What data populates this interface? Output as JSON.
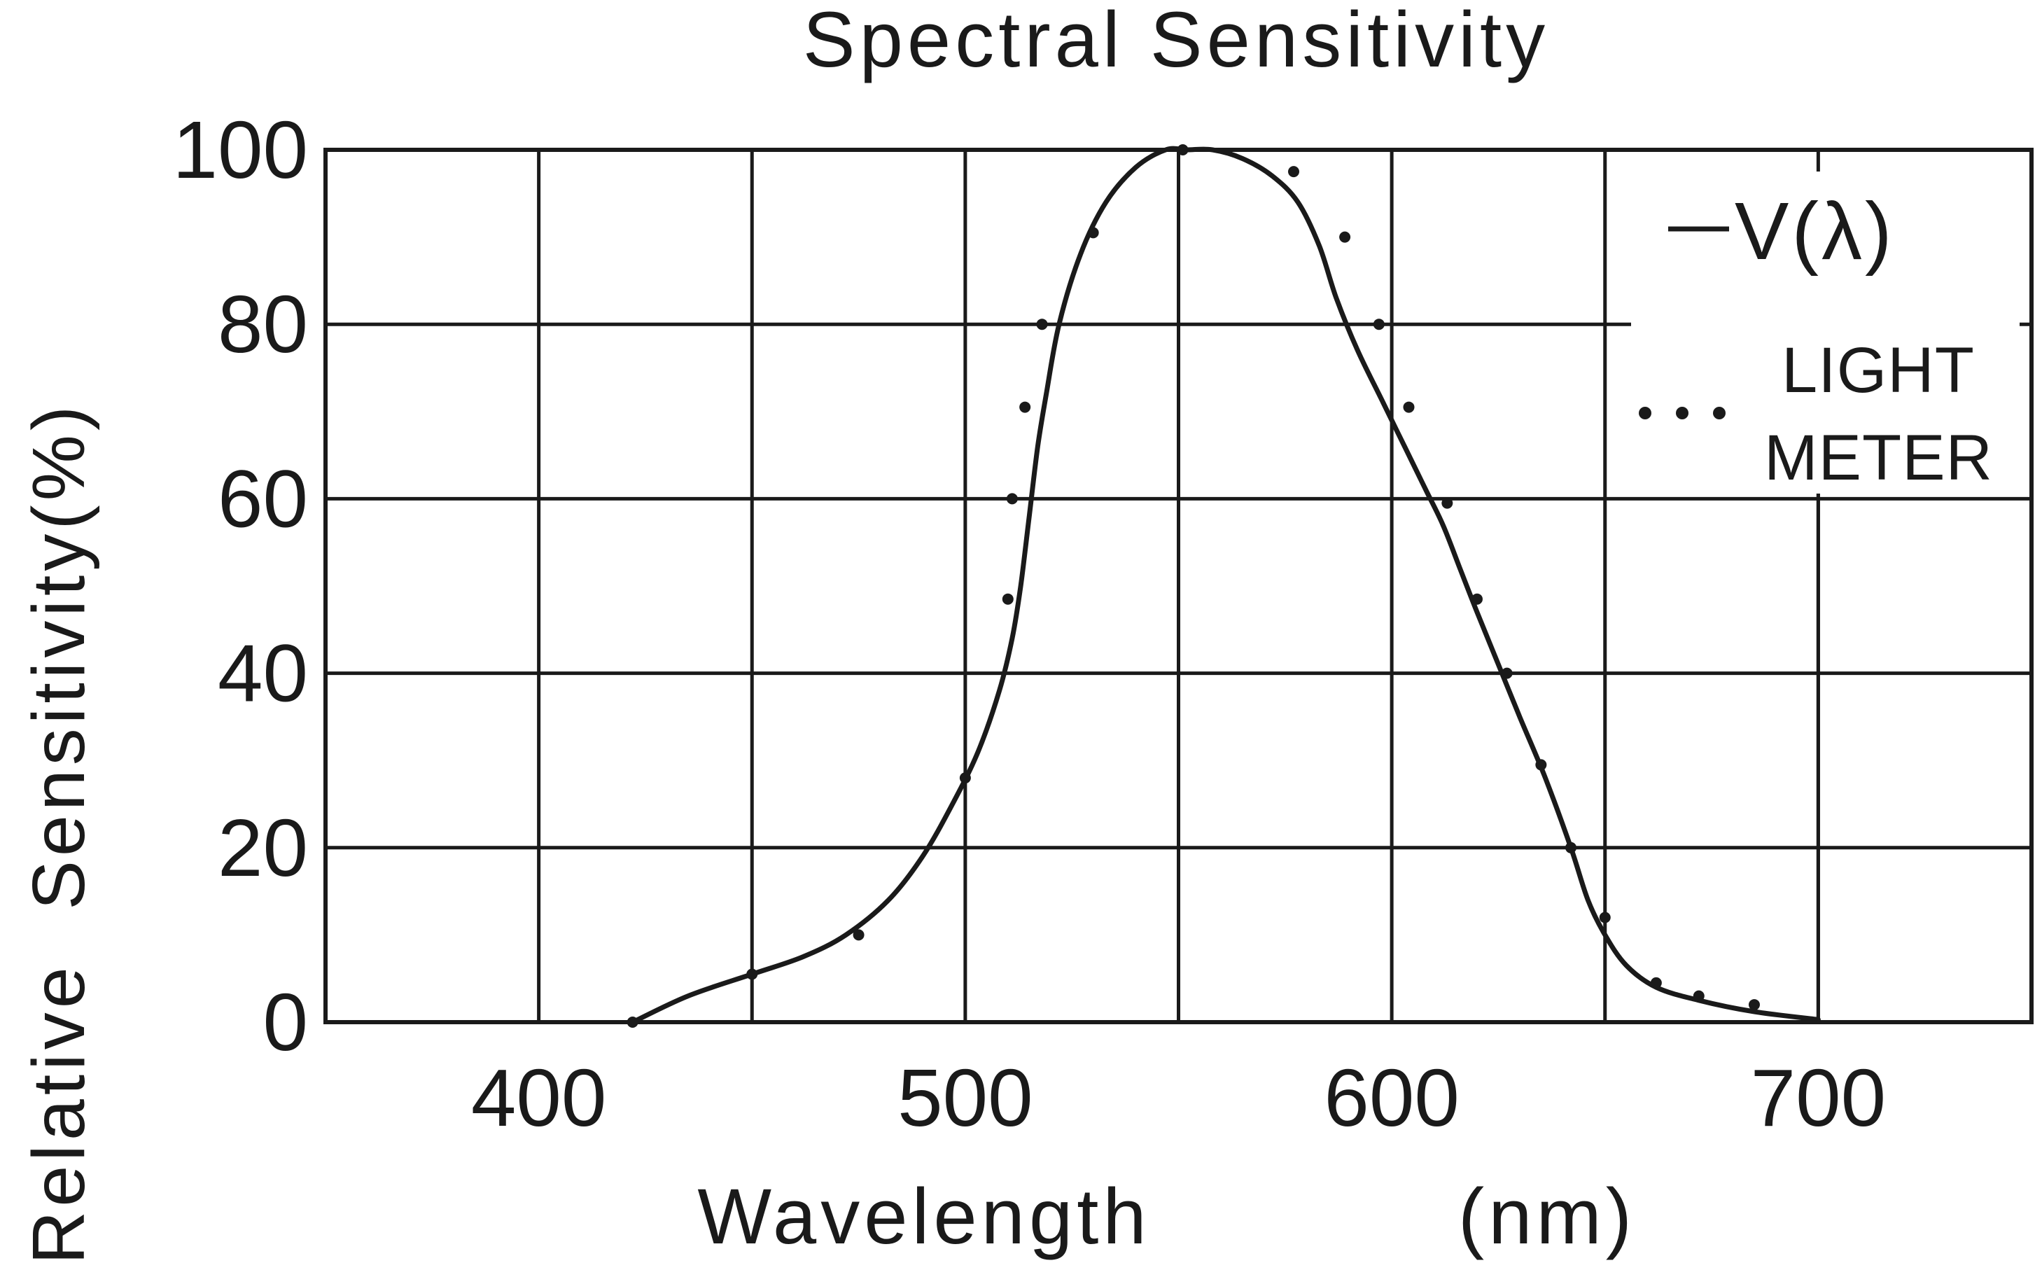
{
  "chart_data": {
    "type": "line",
    "title": "Spectral Sensitivity",
    "xlabel_text": "Wavelength",
    "xlabel_unit": "(nm)",
    "ylabel": "Relative Sensitivity(%)",
    "xlim": [
      350,
      750
    ],
    "ylim": [
      0,
      100
    ],
    "x_ticks": [
      400,
      500,
      600,
      700
    ],
    "x_tick_labels": [
      "400",
      "500",
      "600",
      "700"
    ],
    "y_ticks": [
      0,
      20,
      40,
      60,
      80,
      100
    ],
    "y_tick_labels": [
      "0",
      "20",
      "40",
      "60",
      "80",
      "100"
    ],
    "grid": true,
    "legend_position": "top-right",
    "series": [
      {
        "name": "V(λ)",
        "legend_label": "V(λ)",
        "style": "solid-line",
        "x": [
          422,
          435,
          450,
          462,
          472,
          482,
          490,
          497,
          503,
          508,
          511,
          513,
          515,
          517,
          519,
          522,
          527,
          533,
          540,
          547,
          552,
          558,
          565,
          572,
          578,
          583,
          587,
          592,
          598,
          603,
          608,
          612,
          616,
          620,
          625,
          630,
          636,
          642,
          646,
          650,
          655,
          662,
          672,
          685,
          700
        ],
        "values": [
          0,
          3,
          5.5,
          7.5,
          10,
          14,
          19,
          25,
          31,
          38,
          44,
          50,
          58,
          66,
          72,
          80,
          88,
          94,
          98,
          100,
          100,
          100,
          99,
          97,
          94,
          89,
          83,
          77,
          71,
          66,
          61,
          57,
          52,
          47,
          41,
          35,
          28,
          20,
          14,
          10,
          6.5,
          4,
          2.5,
          1.2,
          0.3
        ]
      },
      {
        "name": "LIGHT METER",
        "legend_label_line1": "LIGHT",
        "legend_label_line2": "METER",
        "style": "dotted-markers",
        "x": [
          422,
          450,
          475,
          500,
          510,
          511,
          514,
          518,
          530,
          551,
          577,
          589,
          597,
          604,
          613,
          620,
          627,
          635,
          642,
          650,
          662,
          672,
          685
        ],
        "values": [
          0,
          5.5,
          10,
          28,
          48.5,
          60,
          70.5,
          80,
          90.5,
          100,
          97.5,
          90,
          80,
          70.5,
          59.5,
          48.5,
          40,
          29.5,
          20,
          12,
          4.5,
          3,
          2
        ]
      }
    ]
  }
}
